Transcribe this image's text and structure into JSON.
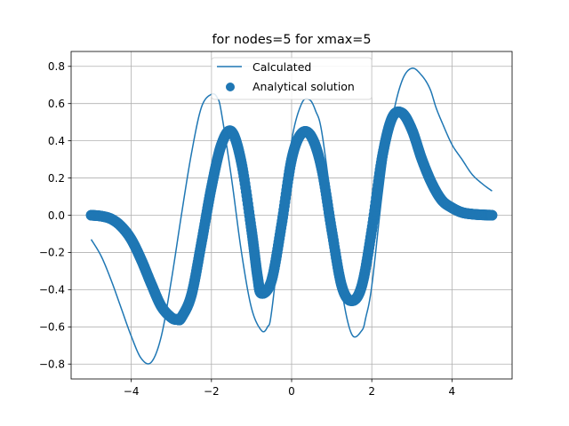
{
  "chart_data": {
    "type": "line",
    "title": "for nodes=5 for xmax=5",
    "xlabel": "",
    "ylabel": "",
    "xlim": [
      -5.5,
      5.5
    ],
    "ylim": [
      -0.88,
      0.88
    ],
    "xticks": [
      -4,
      -2,
      0,
      2,
      4
    ],
    "yticks": [
      -0.8,
      -0.6,
      -0.4,
      -0.2,
      0.0,
      0.2,
      0.4,
      0.6,
      0.8
    ],
    "xtick_labels": [
      "−4",
      "−2",
      "0",
      "2",
      "4"
    ],
    "ytick_labels": [
      "−0.8",
      "−0.6",
      "−0.4",
      "−0.2",
      "0.0",
      "0.2",
      "0.4",
      "0.6",
      "0.8"
    ],
    "grid": true,
    "legend_position": "upper center",
    "color": "#1f77b4",
    "series": [
      {
        "name": "Calculated",
        "kind": "line",
        "x": [
          -5.0,
          -4.75,
          -4.5,
          -4.25,
          -4.0,
          -3.75,
          -3.5,
          -3.25,
          -3.0,
          -2.75,
          -2.5,
          -2.25,
          -2.0,
          -1.85,
          -1.75,
          -1.5,
          -1.25,
          -1.0,
          -0.75,
          -0.6,
          -0.5,
          -0.25,
          0.0,
          0.25,
          0.45,
          0.6,
          0.75,
          1.0,
          1.25,
          1.5,
          1.75,
          1.85,
          2.0,
          2.25,
          2.5,
          2.75,
          3.0,
          3.25,
          3.45,
          3.6,
          3.75,
          4.0,
          4.25,
          4.5,
          4.75,
          5.0
        ],
        "y": [
          -0.13,
          -0.22,
          -0.35,
          -0.5,
          -0.65,
          -0.77,
          -0.79,
          -0.65,
          -0.35,
          0.0,
          0.33,
          0.58,
          0.65,
          0.63,
          0.55,
          0.2,
          -0.2,
          -0.5,
          -0.62,
          -0.6,
          -0.52,
          -0.05,
          0.4,
          0.6,
          0.62,
          0.56,
          0.45,
          0.05,
          -0.4,
          -0.64,
          -0.62,
          -0.55,
          -0.38,
          0.1,
          0.5,
          0.72,
          0.79,
          0.75,
          0.68,
          0.58,
          0.5,
          0.38,
          0.3,
          0.22,
          0.17,
          0.13
        ]
      },
      {
        "name": "Analytical solution",
        "kind": "scatter",
        "x": [
          -5.0,
          -4.75,
          -4.5,
          -4.25,
          -4.0,
          -3.75,
          -3.5,
          -3.25,
          -3.0,
          -2.85,
          -2.75,
          -2.5,
          -2.25,
          -2.0,
          -1.75,
          -1.5,
          -1.25,
          -1.0,
          -0.85,
          -0.75,
          -0.5,
          -0.25,
          0.0,
          0.25,
          0.5,
          0.75,
          1.0,
          1.25,
          1.5,
          1.75,
          2.0,
          2.25,
          2.5,
          2.75,
          3.0,
          3.25,
          3.5,
          3.75,
          4.0,
          4.25,
          4.5,
          4.75,
          5.0
        ],
        "y": [
          0.0,
          -0.005,
          -0.02,
          -0.06,
          -0.13,
          -0.24,
          -0.37,
          -0.49,
          -0.55,
          -0.56,
          -0.55,
          -0.43,
          -0.15,
          0.15,
          0.38,
          0.45,
          0.28,
          -0.08,
          -0.33,
          -0.42,
          -0.35,
          -0.05,
          0.3,
          0.44,
          0.42,
          0.25,
          -0.08,
          -0.38,
          -0.46,
          -0.38,
          -0.08,
          0.3,
          0.52,
          0.55,
          0.46,
          0.3,
          0.17,
          0.08,
          0.04,
          0.015,
          0.006,
          0.002,
          0.0
        ]
      }
    ]
  }
}
